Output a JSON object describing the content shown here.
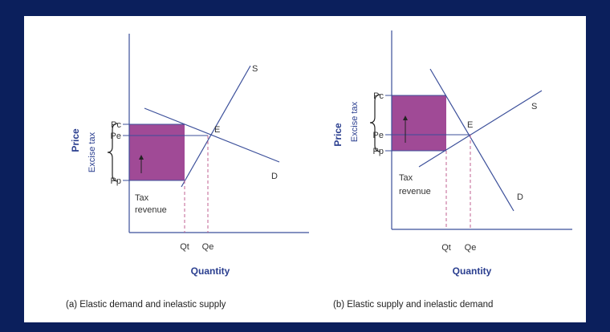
{
  "colors": {
    "background": "#0b1f5c",
    "panel": "#ffffff",
    "tax_revenue_fill": "#a04a96",
    "curve": "#3b4f9a",
    "label_blue": "#2a3e8f",
    "dashed": "#c06090"
  },
  "panels": [
    {
      "id": "a",
      "caption": "(a) Elastic demand and inelastic supply",
      "y_axis_title": "Price",
      "x_axis_title": "Quantity",
      "tax_label": "Excise tax",
      "price_labels": {
        "pc": "Pc",
        "pe": "Pe",
        "pp": "Pp"
      },
      "quantity_labels": {
        "qt": "Qt",
        "qe": "Qe"
      },
      "curve_labels": {
        "supply": "S",
        "demand": "D",
        "equilibrium": "E"
      },
      "tax_revenue_label": [
        "Tax",
        "revenue"
      ]
    },
    {
      "id": "b",
      "caption": "(b) Elastic supply and inelastic demand",
      "y_axis_title": "Price",
      "x_axis_title": "Quantity",
      "tax_label": "Excise tax",
      "price_labels": {
        "pc": "Pc",
        "pe": "Pe",
        "pp": "Pp"
      },
      "quantity_labels": {
        "qt": "Qt",
        "qe": "Qe"
      },
      "curve_labels": {
        "supply": "S",
        "demand": "D",
        "equilibrium": "E"
      },
      "tax_revenue_label": [
        "Tax",
        "revenue"
      ]
    }
  ]
}
